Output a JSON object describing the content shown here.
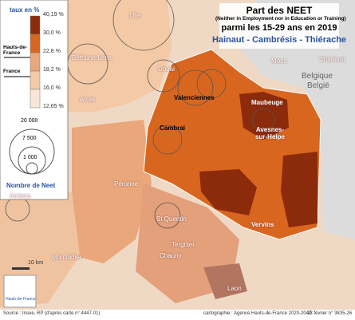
{
  "title": {
    "line1": "Part des NEET",
    "line2": "(Neither in Employment nor in Education or Training)",
    "line3": "parmi les 15-29 ans en 2019",
    "subtitle": "Hainaut - Cambrésis - Thiérache"
  },
  "legend": {
    "rate_title": "taux en %",
    "breaks": [
      "40,19 %",
      "30,0 %",
      "22,8 %",
      "18,2 %",
      "16,0 %",
      "12,65 %"
    ],
    "markers": [
      "Hauts-de-France",
      "France"
    ],
    "sizes": [
      "20 000",
      "7 500",
      "1 000"
    ],
    "size_title": "Nombre de Neet"
  },
  "places": [
    "Lille",
    "Béthune-Lens",
    "Douai",
    "Arras",
    "Valenciennes",
    "Maubeuge",
    "Cambrai",
    "Avesnes-sur-Helpe",
    "Vervins",
    "Péronne",
    "St Quentin",
    "Amiens",
    "Montdidier",
    "Tergnier",
    "Chauny",
    "Laon",
    "Mons",
    "Charleroi",
    "Belgique",
    "België"
  ],
  "scale": "10 km",
  "logo": "Hauts-de-France",
  "footer": {
    "source": "Source : Insee, RP (d'après carte n° 4447-01)",
    "credit": "cartographie : Agence Hauts-de-France 2020-2040",
    "ref": "23 février n° 3835-26"
  }
}
